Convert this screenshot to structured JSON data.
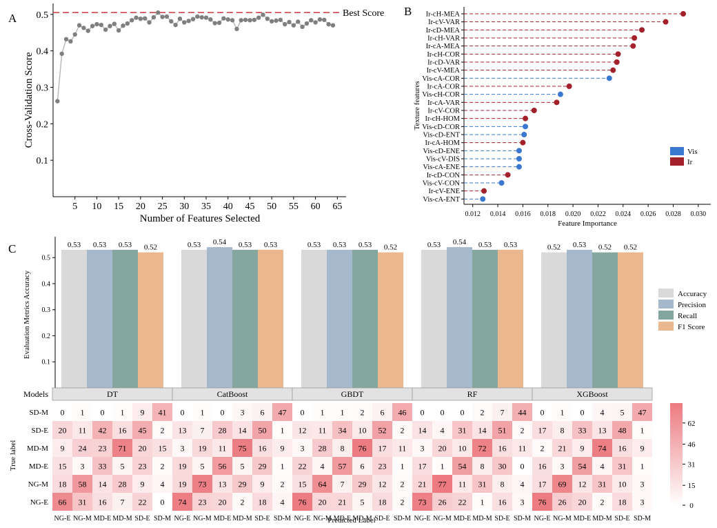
{
  "panels": {
    "a": {
      "letter": "A"
    },
    "b": {
      "letter": "B"
    },
    "c": {
      "letter": "C"
    }
  },
  "chart_data": [
    {
      "type": "line",
      "panel": "A",
      "xlabel": "Number of Features Selected",
      "ylabel": "Cross-Validation Score",
      "xlim": [
        0,
        67
      ],
      "ylim": [
        0.0,
        0.53
      ],
      "xticks": [
        5,
        10,
        15,
        20,
        25,
        30,
        35,
        40,
        45,
        50,
        55,
        60,
        65
      ],
      "yticks": [
        0.1,
        0.2,
        0.3,
        0.4,
        0.5
      ],
      "ytick_labels": [
        "0.1",
        "0.2",
        "0.3",
        "0.4",
        "0.5"
      ],
      "reference_line": {
        "label": "Best Score",
        "y": 0.505,
        "color": "#d0454c"
      },
      "x": [
        1,
        2,
        3,
        4,
        5,
        6,
        7,
        8,
        9,
        10,
        11,
        12,
        13,
        14,
        15,
        16,
        17,
        18,
        19,
        20,
        21,
        22,
        23,
        24,
        25,
        26,
        27,
        28,
        29,
        30,
        31,
        32,
        33,
        34,
        35,
        36,
        37,
        38,
        39,
        40,
        41,
        42,
        43,
        44,
        45,
        46,
        47,
        48,
        49,
        50,
        51,
        52,
        53,
        54,
        55,
        56,
        57,
        58,
        59,
        60,
        61,
        62,
        63,
        64
      ],
      "y": [
        0.262,
        0.392,
        0.432,
        0.426,
        0.445,
        0.47,
        0.463,
        0.455,
        0.468,
        0.473,
        0.471,
        0.458,
        0.468,
        0.474,
        0.456,
        0.469,
        0.475,
        0.484,
        0.491,
        0.488,
        0.489,
        0.478,
        0.492,
        0.505,
        0.493,
        0.494,
        0.481,
        0.471,
        0.488,
        0.478,
        0.482,
        0.487,
        0.494,
        0.492,
        0.491,
        0.486,
        0.476,
        0.477,
        0.489,
        0.486,
        0.484,
        0.46,
        0.484,
        0.485,
        0.484,
        0.485,
        0.491,
        0.499,
        0.488,
        0.481,
        0.483,
        0.485,
        0.473,
        0.479,
        0.47,
        0.48,
        0.466,
        0.475,
        0.484,
        0.478,
        0.486,
        0.485,
        0.473,
        0.47
      ],
      "grid": false
    },
    {
      "type": "bar",
      "panel": "B",
      "orientation": "horizontal-lollipop",
      "xlabel": "Feature Importance",
      "ylabel": "Texture features",
      "xlim": [
        0.0113,
        0.031
      ],
      "xticks": [
        0.012,
        0.014,
        0.016,
        0.018,
        0.02,
        0.022,
        0.024,
        0.026,
        0.028,
        0.03
      ],
      "xtick_labels": [
        "0.012",
        "0.014",
        "0.016",
        "0.018",
        "0.020",
        "0.022",
        "0.024",
        "0.026",
        "0.028",
        "0.030"
      ],
      "legend": {
        "position": "right",
        "entries": [
          {
            "label": "Vis",
            "color": "#3a78cf"
          },
          {
            "label": "Ir",
            "color": "#a3212b"
          }
        ]
      },
      "categories": [
        "Ir-cH-MEA",
        "Ir-cV-VAR",
        "Ir-cD-MEA",
        "Ir-cH-VAR",
        "Ir-cA-MEA",
        "Ir-cH-COR",
        "Ir-cD-VAR",
        "Ir-cV-MEA",
        "Vis-cA-COR",
        "Ir-cA-COR",
        "Vis-cH-COR",
        "Ir-cA-VAR",
        "Ir-cV-COR",
        "Ir-cH-HOM",
        "Vis-cD-COR",
        "Vis-cD-ENT",
        "Ir-cA-HOM",
        "Vis-cD-ENE",
        "Vis-cV-DIS",
        "Vis-cA-ENE",
        "Ir-cD-CON",
        "Vis-cV-CON",
        "Ir-cV-ENE",
        "Vis-cA-ENT"
      ],
      "values": [
        0.0288,
        0.0274,
        0.0255,
        0.0249,
        0.0248,
        0.0236,
        0.0235,
        0.0232,
        0.0229,
        0.0197,
        0.019,
        0.0187,
        0.0169,
        0.0162,
        0.0162,
        0.0161,
        0.016,
        0.0157,
        0.0157,
        0.0157,
        0.0148,
        0.0143,
        0.0129,
        0.0128
      ],
      "groups": [
        "Ir",
        "Ir",
        "Ir",
        "Ir",
        "Ir",
        "Ir",
        "Ir",
        "Ir",
        "Vis",
        "Ir",
        "Vis",
        "Ir",
        "Ir",
        "Ir",
        "Vis",
        "Vis",
        "Ir",
        "Vis",
        "Vis",
        "Vis",
        "Ir",
        "Vis",
        "Ir",
        "Vis"
      ]
    },
    {
      "type": "bar",
      "panel": "C",
      "ylabel": "Evaluation Metrics Accuracy",
      "ylim": [
        0,
        0.58
      ],
      "yticks": [
        0.1,
        0.2,
        0.3,
        0.4,
        0.5
      ],
      "ytick_labels": [
        "0.1",
        "0.2",
        "0.3",
        "0.4",
        "0.5"
      ],
      "categories": [
        "DT",
        "CatBoost",
        "GBDT",
        "RF",
        "XGBoost"
      ],
      "legend": {
        "position": "right"
      },
      "series": [
        {
          "name": "Accuracy",
          "color": "#d9d9d9",
          "values": [
            0.53,
            0.53,
            0.53,
            0.53,
            0.52
          ]
        },
        {
          "name": "Precision",
          "color": "#a6b8cc",
          "values": [
            0.53,
            0.54,
            0.53,
            0.54,
            0.53
          ]
        },
        {
          "name": "Recall",
          "color": "#83a69e",
          "values": [
            0.53,
            0.53,
            0.53,
            0.53,
            0.52
          ]
        },
        {
          "name": "F1 Score",
          "color": "#ebb78f",
          "values": [
            0.52,
            0.53,
            0.52,
            0.53,
            0.52
          ]
        }
      ],
      "value_labels": [
        [
          "0.53",
          "0.53",
          "0.53",
          "0.52"
        ],
        [
          "0.53",
          "0.54",
          "0.53",
          "0.53"
        ],
        [
          "0.53",
          "0.53",
          "0.53",
          "0.52"
        ],
        [
          "0.53",
          "0.54",
          "0.53",
          "0.53"
        ],
        [
          "0.52",
          "0.53",
          "0.52",
          "0.52"
        ]
      ]
    },
    {
      "type": "heatmap",
      "panel": "C",
      "models_label": "Models",
      "models": [
        "DT",
        "CatBoost",
        "GBDT",
        "RF",
        "XGBoost"
      ],
      "xlabel": "Predicted Label",
      "ylabel": "True label",
      "predicted_labels": [
        "NG-E",
        "NG-M",
        "MD-E",
        "MD-M",
        "SD-E",
        "SD-M"
      ],
      "true_labels": [
        "SD-M",
        "SD-E",
        "MD-M",
        "MD-E",
        "NG-M",
        "NG-E"
      ],
      "colorbar": {
        "ticks": [
          0,
          15,
          31,
          46,
          62
        ],
        "max": 77
      },
      "matrices": [
        [
          [
            0,
            1,
            0,
            1,
            9,
            41
          ],
          [
            20,
            11,
            42,
            16,
            45,
            2
          ],
          [
            9,
            24,
            23,
            71,
            20,
            15
          ],
          [
            15,
            3,
            33,
            5,
            23,
            2
          ],
          [
            18,
            58,
            14,
            28,
            9,
            4
          ],
          [
            66,
            31,
            16,
            7,
            22,
            0
          ]
        ],
        [
          [
            0,
            1,
            0,
            3,
            6,
            47
          ],
          [
            13,
            7,
            28,
            14,
            50,
            1
          ],
          [
            3,
            19,
            11,
            75,
            16,
            9
          ],
          [
            19,
            5,
            56,
            5,
            29,
            1
          ],
          [
            19,
            73,
            13,
            29,
            9,
            2
          ],
          [
            74,
            23,
            20,
            2,
            18,
            4
          ]
        ],
        [
          [
            0,
            1,
            1,
            2,
            6,
            46
          ],
          [
            12,
            11,
            34,
            10,
            52,
            2
          ],
          [
            3,
            28,
            8,
            76,
            17,
            11
          ],
          [
            22,
            4,
            57,
            6,
            23,
            1
          ],
          [
            15,
            64,
            7,
            29,
            12,
            2
          ],
          [
            76,
            20,
            21,
            5,
            18,
            2
          ]
        ],
        [
          [
            0,
            0,
            0,
            2,
            7,
            44
          ],
          [
            14,
            4,
            31,
            14,
            51,
            2
          ],
          [
            3,
            20,
            10,
            72,
            16,
            11
          ],
          [
            17,
            1,
            54,
            8,
            30,
            0
          ],
          [
            21,
            77,
            11,
            31,
            8,
            4
          ],
          [
            73,
            26,
            22,
            1,
            16,
            3
          ]
        ],
        [
          [
            0,
            1,
            0,
            4,
            5,
            47
          ],
          [
            17,
            8,
            33,
            13,
            48,
            1
          ],
          [
            2,
            21,
            9,
            74,
            16,
            9
          ],
          [
            16,
            3,
            54,
            4,
            31,
            1
          ],
          [
            17,
            69,
            12,
            31,
            10,
            3
          ],
          [
            76,
            26,
            20,
            2,
            18,
            3
          ]
        ]
      ]
    }
  ]
}
